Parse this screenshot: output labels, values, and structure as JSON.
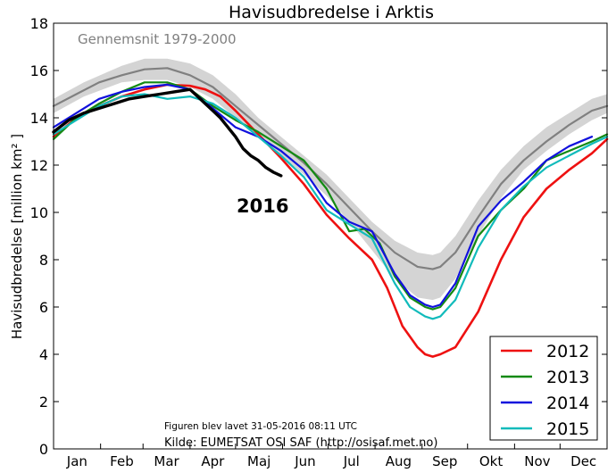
{
  "chart_data": {
    "type": "line",
    "title": "Havisudbredelse i Arktis",
    "ylabel": "Havisudbredelse [million km² ]",
    "ylim": [
      0,
      18
    ],
    "yticks": [
      0,
      2,
      4,
      6,
      8,
      10,
      12,
      14,
      16,
      18
    ],
    "xlim_day": [
      0,
      365
    ],
    "months": [
      "Jan",
      "Feb",
      "Mar",
      "Apr",
      "Maj",
      "Jun",
      "Jul",
      "Aug",
      "Sep",
      "Okt",
      "Nov",
      "Dec"
    ],
    "grid": false,
    "legend_position": "bottom-right",
    "band": {
      "label": "Gennemsnit 1979-2000",
      "color": "#d4d4d4",
      "x": [
        0,
        20,
        45,
        60,
        75,
        90,
        105,
        120,
        135,
        150,
        165,
        180,
        195,
        210,
        225,
        240,
        250,
        255,
        265,
        280,
        295,
        310,
        325,
        340,
        355,
        365
      ],
      "lower": [
        14.2,
        14.9,
        15.5,
        15.6,
        15.6,
        15.3,
        14.8,
        14.0,
        13.2,
        12.4,
        11.6,
        10.7,
        9.6,
        8.4,
        7.2,
        6.4,
        6.3,
        6.4,
        7.2,
        9.0,
        10.6,
        11.8,
        12.6,
        13.3,
        13.9,
        14.2
      ],
      "upper": [
        14.8,
        15.5,
        16.2,
        16.5,
        16.5,
        16.3,
        15.8,
        15.0,
        14.0,
        13.2,
        12.4,
        11.6,
        10.6,
        9.6,
        8.8,
        8.3,
        8.2,
        8.3,
        9.0,
        10.5,
        11.8,
        12.8,
        13.6,
        14.2,
        14.8,
        15.0
      ]
    },
    "annotations": {
      "year_label": "2016",
      "footer_line1": "Figuren blev lavet 31-05-2016 08:11 UTC",
      "footer_line2": "Kilde: EUMETSAT OSI SAF (http://osisaf.met.no)"
    },
    "series": [
      {
        "name": "Gennemsnit 1979-2000",
        "legend": false,
        "color": "#808080",
        "width": 2.2,
        "x": [
          0,
          15,
          30,
          45,
          60,
          75,
          90,
          105,
          120,
          135,
          150,
          165,
          180,
          195,
          210,
          225,
          240,
          250,
          255,
          265,
          280,
          295,
          310,
          325,
          340,
          355,
          365
        ],
        "y": [
          14.5,
          15.0,
          15.5,
          15.8,
          16.05,
          16.1,
          15.8,
          15.3,
          14.5,
          13.7,
          12.9,
          12.1,
          11.2,
          10.2,
          9.2,
          8.3,
          7.7,
          7.6,
          7.7,
          8.3,
          9.8,
          11.2,
          12.2,
          13.0,
          13.7,
          14.3,
          14.5
        ]
      },
      {
        "name": "2012",
        "legend": true,
        "color": "#ee1111",
        "width": 2.6,
        "x": [
          0,
          15,
          30,
          45,
          60,
          75,
          90,
          100,
          110,
          120,
          135,
          150,
          165,
          180,
          195,
          210,
          220,
          230,
          240,
          245,
          250,
          255,
          265,
          280,
          295,
          310,
          325,
          340,
          355,
          365
        ],
        "y": [
          13.2,
          14.0,
          14.5,
          14.9,
          15.2,
          15.4,
          15.35,
          15.2,
          14.9,
          14.3,
          13.3,
          12.3,
          11.2,
          9.9,
          8.9,
          8.0,
          6.8,
          5.2,
          4.3,
          4.0,
          3.9,
          4.0,
          4.3,
          5.8,
          8.0,
          9.8,
          11.0,
          11.8,
          12.5,
          13.1
        ]
      },
      {
        "name": "2013",
        "legend": true,
        "color": "#138a13",
        "width": 2.2,
        "x": [
          0,
          15,
          30,
          45,
          60,
          75,
          90,
          105,
          120,
          135,
          150,
          165,
          180,
          195,
          205,
          215,
          225,
          235,
          245,
          250,
          255,
          265,
          280,
          295,
          310,
          325,
          340,
          355,
          365
        ],
        "y": [
          13.1,
          14.0,
          14.6,
          15.1,
          15.5,
          15.5,
          15.2,
          14.5,
          13.9,
          13.4,
          12.8,
          12.2,
          11.0,
          9.2,
          9.3,
          8.7,
          7.3,
          6.4,
          6.0,
          5.9,
          6.0,
          6.8,
          9.0,
          10.1,
          11.0,
          12.2,
          12.6,
          13.0,
          13.3
        ]
      },
      {
        "name": "2014",
        "legend": true,
        "color": "#1111dd",
        "width": 2.2,
        "x": [
          0,
          15,
          30,
          45,
          60,
          75,
          90,
          105,
          120,
          135,
          150,
          165,
          180,
          195,
          210,
          225,
          235,
          245,
          250,
          255,
          265,
          280,
          295,
          310,
          325,
          340,
          355
        ],
        "y": [
          13.6,
          14.2,
          14.8,
          15.1,
          15.3,
          15.4,
          15.2,
          14.4,
          13.6,
          13.2,
          12.6,
          11.8,
          10.4,
          9.6,
          9.2,
          7.4,
          6.5,
          6.1,
          6.0,
          6.1,
          7.0,
          9.4,
          10.5,
          11.3,
          12.2,
          12.8,
          13.2
        ]
      },
      {
        "name": "2015",
        "legend": true,
        "color": "#11bbbb",
        "width": 2.2,
        "x": [
          0,
          15,
          30,
          45,
          60,
          75,
          90,
          105,
          120,
          135,
          150,
          165,
          180,
          195,
          210,
          225,
          235,
          245,
          250,
          255,
          265,
          280,
          295,
          310,
          325,
          340,
          355,
          365
        ],
        "y": [
          13.3,
          13.9,
          14.5,
          14.9,
          15.0,
          14.8,
          14.9,
          14.6,
          14.0,
          13.2,
          12.4,
          11.5,
          10.1,
          9.5,
          8.9,
          7.0,
          6.0,
          5.6,
          5.5,
          5.6,
          6.3,
          8.5,
          10.1,
          11.1,
          11.9,
          12.4,
          12.9,
          13.2
        ]
      },
      {
        "name": "2016",
        "legend": false,
        "color": "#000000",
        "width": 3.4,
        "x": [
          0,
          10,
          20,
          30,
          40,
          50,
          60,
          70,
          80,
          90,
          95,
          100,
          105,
          110,
          115,
          120,
          125,
          130,
          135,
          140,
          145,
          150
        ],
        "y": [
          13.4,
          13.9,
          14.2,
          14.4,
          14.6,
          14.8,
          14.9,
          15.0,
          15.1,
          15.2,
          14.9,
          14.6,
          14.3,
          14.0,
          13.6,
          13.2,
          12.7,
          12.4,
          12.2,
          11.9,
          11.7,
          11.55
        ]
      }
    ]
  }
}
